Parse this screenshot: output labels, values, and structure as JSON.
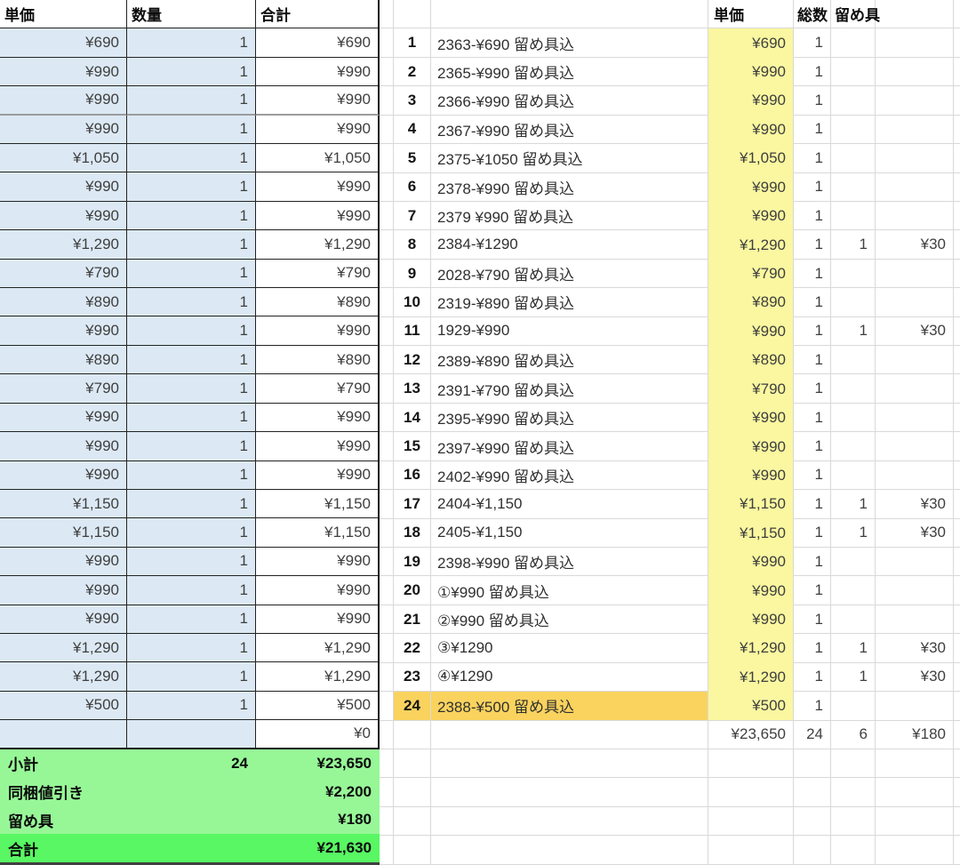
{
  "left_table": {
    "headers": [
      "単価",
      "数量",
      "合計"
    ],
    "rows": [
      {
        "unit": "¥690",
        "qty": "1",
        "total": "¥690"
      },
      {
        "unit": "¥990",
        "qty": "1",
        "total": "¥990"
      },
      {
        "unit": "¥990",
        "qty": "1",
        "total": "¥990"
      },
      {
        "unit": "¥990",
        "qty": "1",
        "total": "¥990"
      },
      {
        "unit": "¥1,050",
        "qty": "1",
        "total": "¥1,050"
      },
      {
        "unit": "¥990",
        "qty": "1",
        "total": "¥990"
      },
      {
        "unit": "¥990",
        "qty": "1",
        "total": "¥990"
      },
      {
        "unit": "¥1,290",
        "qty": "1",
        "total": "¥1,290"
      },
      {
        "unit": "¥790",
        "qty": "1",
        "total": "¥790"
      },
      {
        "unit": "¥890",
        "qty": "1",
        "total": "¥890"
      },
      {
        "unit": "¥990",
        "qty": "1",
        "total": "¥990"
      },
      {
        "unit": "¥890",
        "qty": "1",
        "total": "¥890"
      },
      {
        "unit": "¥790",
        "qty": "1",
        "total": "¥790"
      },
      {
        "unit": "¥990",
        "qty": "1",
        "total": "¥990"
      },
      {
        "unit": "¥990",
        "qty": "1",
        "total": "¥990"
      },
      {
        "unit": "¥990",
        "qty": "1",
        "total": "¥990"
      },
      {
        "unit": "¥1,150",
        "qty": "1",
        "total": "¥1,150"
      },
      {
        "unit": "¥1,150",
        "qty": "1",
        "total": "¥1,150"
      },
      {
        "unit": "¥990",
        "qty": "1",
        "total": "¥990"
      },
      {
        "unit": "¥990",
        "qty": "1",
        "total": "¥990"
      },
      {
        "unit": "¥990",
        "qty": "1",
        "total": "¥990"
      },
      {
        "unit": "¥1,290",
        "qty": "1",
        "total": "¥1,290"
      },
      {
        "unit": "¥1,290",
        "qty": "1",
        "total": "¥1,290"
      },
      {
        "unit": "¥500",
        "qty": "1",
        "total": "¥500"
      },
      {
        "unit": "",
        "qty": "",
        "total": "¥0"
      }
    ],
    "summary": [
      {
        "label": "小計",
        "qty": "24",
        "amount": "¥23,650"
      },
      {
        "label": "同梱値引き",
        "qty": "",
        "amount": "¥2,200"
      },
      {
        "label": "留め具",
        "qty": "",
        "amount": "¥180"
      },
      {
        "label": "合計",
        "qty": "",
        "amount": "¥21,630"
      }
    ]
  },
  "right_table": {
    "headers": {
      "price": "単価",
      "count": "総数",
      "clasp": "留め具"
    },
    "rows": [
      {
        "no": "1",
        "desc": "2363-¥690 留め具込",
        "price": "¥690",
        "count": "1",
        "clasp_count": "",
        "clasp_amount": "",
        "highlight": false
      },
      {
        "no": "2",
        "desc": "2365-¥990 留め具込",
        "price": "¥990",
        "count": "1",
        "clasp_count": "",
        "clasp_amount": "",
        "highlight": false
      },
      {
        "no": "3",
        "desc": "2366-¥990 留め具込",
        "price": "¥990",
        "count": "1",
        "clasp_count": "",
        "clasp_amount": "",
        "highlight": false
      },
      {
        "no": "4",
        "desc": "2367-¥990 留め具込",
        "price": "¥990",
        "count": "1",
        "clasp_count": "",
        "clasp_amount": "",
        "highlight": false
      },
      {
        "no": "5",
        "desc": "2375-¥1050 留め具込",
        "price": "¥1,050",
        "count": "1",
        "clasp_count": "",
        "clasp_amount": "",
        "highlight": false
      },
      {
        "no": "6",
        "desc": "2378-¥990 留め具込",
        "price": "¥990",
        "count": "1",
        "clasp_count": "",
        "clasp_amount": "",
        "highlight": false
      },
      {
        "no": "7",
        "desc": "2379 ¥990 留め具込",
        "price": "¥990",
        "count": "1",
        "clasp_count": "",
        "clasp_amount": "",
        "highlight": false
      },
      {
        "no": "8",
        "desc": "2384-¥1290",
        "price": "¥1,290",
        "count": "1",
        "clasp_count": "1",
        "clasp_amount": "¥30",
        "highlight": false
      },
      {
        "no": "9",
        "desc": "2028-¥790 留め具込",
        "price": "¥790",
        "count": "1",
        "clasp_count": "",
        "clasp_amount": "",
        "highlight": false
      },
      {
        "no": "10",
        "desc": "2319-¥890 留め具込",
        "price": "¥890",
        "count": "1",
        "clasp_count": "",
        "clasp_amount": "",
        "highlight": false
      },
      {
        "no": "11",
        "desc": "1929-¥990",
        "price": "¥990",
        "count": "1",
        "clasp_count": "1",
        "clasp_amount": "¥30",
        "highlight": false
      },
      {
        "no": "12",
        "desc": "2389-¥890 留め具込",
        "price": "¥890",
        "count": "1",
        "clasp_count": "",
        "clasp_amount": "",
        "highlight": false
      },
      {
        "no": "13",
        "desc": "2391-¥790 留め具込",
        "price": "¥790",
        "count": "1",
        "clasp_count": "",
        "clasp_amount": "",
        "highlight": false
      },
      {
        "no": "14",
        "desc": "2395-¥990 留め具込",
        "price": "¥990",
        "count": "1",
        "clasp_count": "",
        "clasp_amount": "",
        "highlight": false
      },
      {
        "no": "15",
        "desc": "2397-¥990 留め具込",
        "price": "¥990",
        "count": "1",
        "clasp_count": "",
        "clasp_amount": "",
        "highlight": false
      },
      {
        "no": "16",
        "desc": "2402-¥990 留め具込",
        "price": "¥990",
        "count": "1",
        "clasp_count": "",
        "clasp_amount": "",
        "highlight": false
      },
      {
        "no": "17",
        "desc": "2404-¥1,150",
        "price": "¥1,150",
        "count": "1",
        "clasp_count": "1",
        "clasp_amount": "¥30",
        "highlight": false
      },
      {
        "no": "18",
        "desc": "2405-¥1,150",
        "price": "¥1,150",
        "count": "1",
        "clasp_count": "1",
        "clasp_amount": "¥30",
        "highlight": false
      },
      {
        "no": "19",
        "desc": "2398-¥990 留め具込",
        "price": "¥990",
        "count": "1",
        "clasp_count": "",
        "clasp_amount": "",
        "highlight": false
      },
      {
        "no": "20",
        "desc": "①¥990 留め具込",
        "price": "¥990",
        "count": "1",
        "clasp_count": "",
        "clasp_amount": "",
        "highlight": false
      },
      {
        "no": "21",
        "desc": "②¥990 留め具込",
        "price": "¥990",
        "count": "1",
        "clasp_count": "",
        "clasp_amount": "",
        "highlight": false
      },
      {
        "no": "22",
        "desc": "③¥1290",
        "price": "¥1,290",
        "count": "1",
        "clasp_count": "1",
        "clasp_amount": "¥30",
        "highlight": false
      },
      {
        "no": "23",
        "desc": "④¥1290",
        "price": "¥1,290",
        "count": "1",
        "clasp_count": "1",
        "clasp_amount": "¥30",
        "highlight": false
      },
      {
        "no": "24",
        "desc": "2388-¥500 留め具込",
        "price": "¥500",
        "count": "1",
        "clasp_count": "",
        "clasp_amount": "",
        "highlight": true
      }
    ],
    "totals": {
      "price": "¥23,650",
      "count": "24",
      "clasp_count": "6",
      "clasp_amount": "¥180"
    }
  },
  "colors": {
    "row_fill_blue": "#DCE9F4",
    "price_fill_yellow": "#FAF7A0",
    "highlight_orange": "#FAD35E",
    "summary_green_light": "#97F797",
    "summary_green_bright": "#58F763",
    "gridline": "#D9D9D9",
    "table_border": "#222222"
  }
}
